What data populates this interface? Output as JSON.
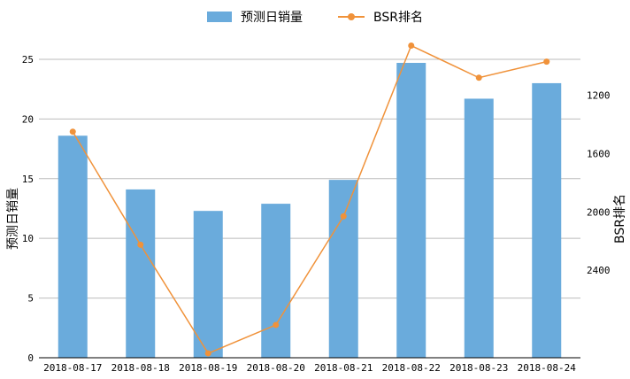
{
  "chart_data": {
    "type": "bar",
    "categories": [
      "2018-08-17",
      "2018-08-18",
      "2018-08-19",
      "2018-08-20",
      "2018-08-21",
      "2018-08-22",
      "2018-08-23",
      "2018-08-24"
    ],
    "series": [
      {
        "name": "预测日销量",
        "type": "bar",
        "axis": "left",
        "color": "#6aabdc",
        "values": [
          18.6,
          14.1,
          12.3,
          12.9,
          14.9,
          24.7,
          21.7,
          23.0
        ]
      },
      {
        "name": "BSR排名",
        "type": "line",
        "axis": "right",
        "color": "#f0923a",
        "values": [
          1450,
          2225,
          2970,
          2775,
          2030,
          860,
          1080,
          970
        ]
      }
    ],
    "ylabel": "预测日销量",
    "ylim": [
      0,
      27
    ],
    "yticks": [
      0,
      5,
      10,
      15,
      20,
      25
    ],
    "y2label": "BSR排名",
    "y2lim": [
      3000,
      790
    ],
    "y2ticks": [
      1200,
      1600,
      2000,
      2400
    ],
    "y2_inverted": true,
    "grid": true,
    "legend_position": "top-center"
  }
}
